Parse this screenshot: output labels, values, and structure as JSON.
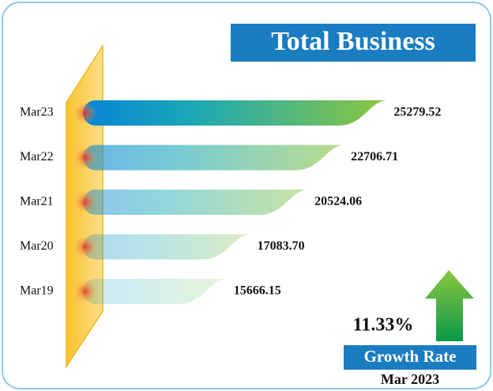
{
  "chart_data": {
    "type": "hbar",
    "title": "Total Business",
    "categories": [
      "Mar23",
      "Mar22",
      "Mar21",
      "Mar20",
      "Mar19"
    ],
    "values": [
      25279.52,
      22706.71,
      20524.06,
      17083.7,
      15666.15
    ],
    "value_labels": [
      "25279.52",
      "22706.71",
      "20524.06",
      "17083.70",
      "15666.15"
    ],
    "colors": [
      "#0a84d6",
      "#8cc63f"
    ],
    "xlim": [
      7000,
      25500
    ],
    "annotations": {
      "growth": "11.33%",
      "growth_label": "Growth Rate",
      "period": "Mar 2023"
    }
  }
}
